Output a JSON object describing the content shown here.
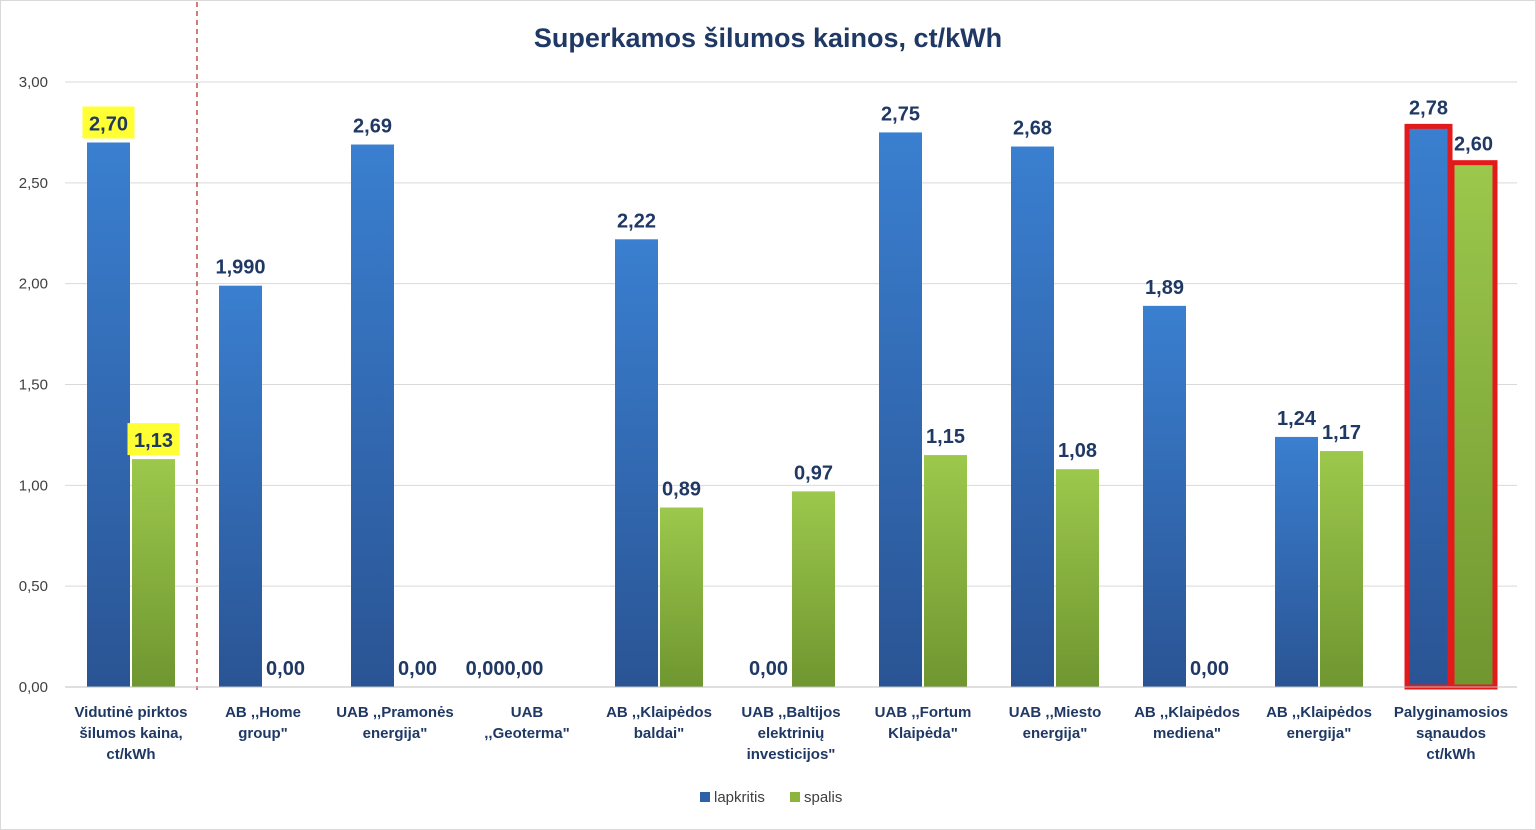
{
  "chart_data": {
    "type": "bar",
    "title": "Superkamos šilumos kainos, ct/kWh",
    "ylim": [
      0,
      3
    ],
    "yticks": [
      "0,00",
      "0,50",
      "1,00",
      "1,50",
      "2,00",
      "2,50",
      "3,00"
    ],
    "grid": true,
    "legend_position": "bottom",
    "categories": [
      [
        "Vidutinė pirktos",
        "šilumos kaina,",
        "ct/kWh"
      ],
      [
        "AB ,,Home",
        "group\""
      ],
      [
        "UAB ,,Pramonės",
        "energija\""
      ],
      [
        "UAB",
        ",,Geoterma\""
      ],
      [
        "AB ,,Klaipėdos",
        "baldai\""
      ],
      [
        "UAB ,,Baltijos",
        "elektrinių",
        "investicijos\""
      ],
      [
        "UAB ,,Fortum",
        "Klaipėda\""
      ],
      [
        "UAB ,,Miesto",
        "energija\""
      ],
      [
        "AB ,,Klaipėdos",
        "mediena\""
      ],
      [
        "AB ,,Klaipėdos",
        "energija\""
      ],
      [
        "Palyginamosios",
        "sąnaudos",
        "ct/kWh"
      ]
    ],
    "series": [
      {
        "name": "lapkritis",
        "color": "#2e62a8",
        "values": [
          2.7,
          1.99,
          2.69,
          0.0,
          2.22,
          0.0,
          2.75,
          2.68,
          1.89,
          1.24,
          2.78
        ],
        "labels": [
          "2,70",
          "1,990",
          "2,69",
          "0,000,00",
          "2,22",
          "0,00",
          "2,75",
          "2,68",
          "1,89",
          "1,24",
          "2,78"
        ]
      },
      {
        "name": "spalis",
        "color": "#8db43f",
        "values": [
          1.13,
          0.0,
          0.0,
          0.0,
          0.89,
          0.97,
          1.15,
          1.08,
          0.0,
          1.17,
          2.6
        ],
        "labels": [
          "1,13",
          "0,00",
          "0,00",
          "",
          "0,89",
          "0,97",
          "1,15",
          "1,08",
          "0,00",
          "1,17",
          "2,60"
        ]
      }
    ],
    "highlighted_labels": [
      "2,70",
      "1,13"
    ],
    "highlight_color": "#ffff33",
    "emphasis_outline_color": "#e31a1c",
    "divider_color": "#c0504d"
  }
}
